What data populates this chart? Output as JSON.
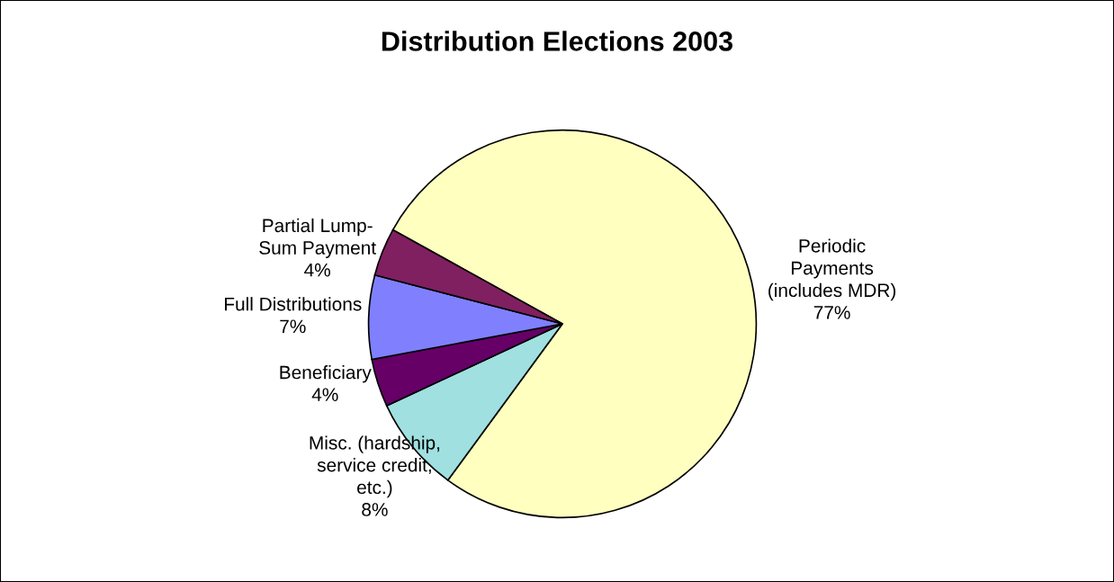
{
  "chart_data": {
    "type": "pie",
    "title": "Distribution Elections 2003",
    "categories": [
      "Periodic\nPayments\n(includes MDR)",
      "Misc. (hardship,\nservice credit,\netc.)",
      "Beneficiary",
      "Full Distributions",
      "Partial Lump-\nSum Payment"
    ],
    "values": [
      77,
      8,
      4,
      7,
      4
    ],
    "value_labels": [
      "77%",
      "8%",
      "4%",
      "7%",
      "4%"
    ],
    "colors": [
      "#ffffc0",
      "#a0e0e0",
      "#660066",
      "#8080ff",
      "#802060"
    ]
  }
}
